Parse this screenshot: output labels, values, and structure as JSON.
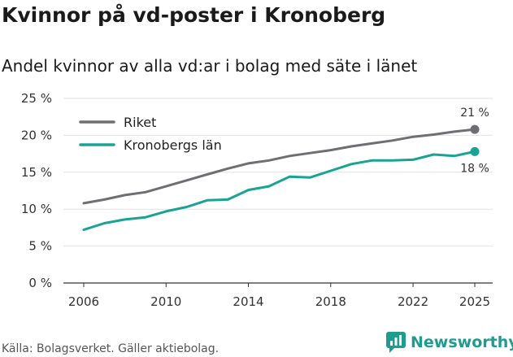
{
  "title": "Kvinnor på vd-poster i Kronoberg",
  "subtitle": "Andel kvinnor av alla vd:ar i bolag med säte i länet",
  "source": "Källa: Bolagsverket. Gäller aktiebolag.",
  "brand": "Newsworthy",
  "colors": {
    "riket": "#6e6e73",
    "kronoberg": "#18a394",
    "grid": "#e2e2e2",
    "axis": "#333333",
    "brand": "#1f9c8f"
  },
  "chart_data": {
    "type": "line",
    "title": "Kvinnor på vd-poster i Kronoberg",
    "subtitle": "Andel kvinnor av alla vd:ar i bolag med säte i länet",
    "xlabel": "",
    "ylabel": "",
    "ylim": [
      0,
      25
    ],
    "xlim": [
      2006,
      2025
    ],
    "grid": true,
    "legend_position": "top-left",
    "y_ticks": [
      0,
      5,
      10,
      15,
      20,
      25
    ],
    "y_tick_labels": [
      "0 %",
      "5 %",
      "10 %",
      "15 %",
      "20 %",
      "25 %"
    ],
    "x_ticks": [
      2006,
      2010,
      2014,
      2018,
      2022,
      2025
    ],
    "x_tick_labels": [
      "2006",
      "2010",
      "2014",
      "2018",
      "2022",
      "2025"
    ],
    "x": [
      2006,
      2007,
      2008,
      2009,
      2010,
      2011,
      2012,
      2013,
      2014,
      2015,
      2016,
      2017,
      2018,
      2019,
      2020,
      2021,
      2022,
      2023,
      2024,
      2025
    ],
    "series": [
      {
        "name": "Riket",
        "color": "#6e6e73",
        "values": [
          10.8,
          11.3,
          11.9,
          12.3,
          13.1,
          13.9,
          14.7,
          15.5,
          16.2,
          16.6,
          17.2,
          17.6,
          18.0,
          18.5,
          18.9,
          19.3,
          19.8,
          20.1,
          20.5,
          20.8
        ],
        "end_label": "21 %"
      },
      {
        "name": "Kronobergs län",
        "color": "#18a394",
        "values": [
          7.2,
          8.1,
          8.6,
          8.9,
          9.7,
          10.3,
          11.2,
          11.3,
          12.6,
          13.1,
          14.4,
          14.3,
          15.2,
          16.1,
          16.6,
          16.6,
          16.7,
          17.4,
          17.2,
          17.8
        ],
        "end_label": "18 %"
      }
    ]
  }
}
